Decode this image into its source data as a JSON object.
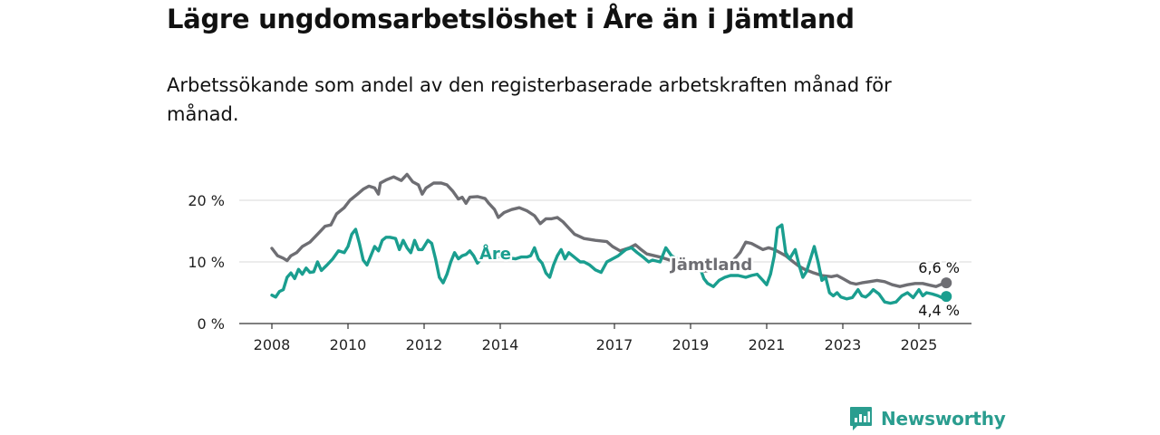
{
  "title": "Lägre ungdomsarbetslöshet i Åre än i Jämtland",
  "subtitle": "Arbetssökande som andel av den registerbaserade arbetskraften månad för månad.",
  "brand": {
    "name": "Newsworthy",
    "icon": "newsworthy-logo-icon"
  },
  "chart_data": {
    "type": "line",
    "title": "Lägre ungdomsarbetslöshet i Åre än i Jämtland",
    "subtitle": "Arbetssökande som andel av den registerbaserade arbetskraften månad för månad.",
    "xlabel": "",
    "ylabel": "",
    "xlim": [
      2007.7,
      2026.4
    ],
    "ylim": [
      0,
      22
    ],
    "grid": "horizontal",
    "legend": "inline labels",
    "yticks": [
      {
        "value": 0,
        "label": "0 %"
      },
      {
        "value": 10,
        "label": "10 %"
      },
      {
        "value": 20,
        "label": "20 %"
      }
    ],
    "xticks": [
      {
        "value": 2008,
        "label": "2008"
      },
      {
        "value": 2010,
        "label": "2010"
      },
      {
        "value": 2012,
        "label": "2012"
      },
      {
        "value": 2014,
        "label": "2014"
      },
      {
        "value": 2017,
        "label": "2017"
      },
      {
        "value": 2019,
        "label": "2019"
      },
      {
        "value": 2021,
        "label": "2021"
      },
      {
        "value": 2023,
        "label": "2023"
      },
      {
        "value": 2025,
        "label": "2025"
      }
    ],
    "series": [
      {
        "name": "Jämtland",
        "color": "#6e6e73",
        "end_label": "6,6 %",
        "end_value": 6.6,
        "points": [
          [
            2008.0,
            12.2
          ],
          [
            2008.15,
            11.0
          ],
          [
            2008.3,
            10.6
          ],
          [
            2008.4,
            10.2
          ],
          [
            2008.5,
            11.0
          ],
          [
            2008.65,
            11.5
          ],
          [
            2008.8,
            12.5
          ],
          [
            2009.0,
            13.2
          ],
          [
            2009.2,
            14.5
          ],
          [
            2009.4,
            15.8
          ],
          [
            2009.55,
            16.0
          ],
          [
            2009.7,
            17.8
          ],
          [
            2009.9,
            18.8
          ],
          [
            2010.05,
            20.0
          ],
          [
            2010.25,
            21.0
          ],
          [
            2010.4,
            21.8
          ],
          [
            2010.55,
            22.3
          ],
          [
            2010.7,
            22.0
          ],
          [
            2010.8,
            21.0
          ],
          [
            2010.85,
            22.8
          ],
          [
            2011.0,
            23.3
          ],
          [
            2011.2,
            23.8
          ],
          [
            2011.4,
            23.2
          ],
          [
            2011.55,
            24.2
          ],
          [
            2011.7,
            23.0
          ],
          [
            2011.85,
            22.5
          ],
          [
            2011.95,
            21.0
          ],
          [
            2012.05,
            22.0
          ],
          [
            2012.25,
            22.8
          ],
          [
            2012.45,
            22.8
          ],
          [
            2012.6,
            22.5
          ],
          [
            2012.75,
            21.5
          ],
          [
            2012.9,
            20.2
          ],
          [
            2013.0,
            20.5
          ],
          [
            2013.1,
            19.5
          ],
          [
            2013.2,
            20.5
          ],
          [
            2013.4,
            20.6
          ],
          [
            2013.6,
            20.3
          ],
          [
            2013.7,
            19.5
          ],
          [
            2013.85,
            18.5
          ],
          [
            2013.95,
            17.2
          ],
          [
            2014.1,
            18.0
          ],
          [
            2014.3,
            18.5
          ],
          [
            2014.5,
            18.8
          ],
          [
            2014.7,
            18.3
          ],
          [
            2014.9,
            17.5
          ],
          [
            2015.05,
            16.2
          ],
          [
            2015.2,
            17.0
          ],
          [
            2015.35,
            17.0
          ],
          [
            2015.5,
            17.2
          ],
          [
            2015.65,
            16.5
          ],
          [
            2015.8,
            15.5
          ],
          [
            2015.95,
            14.5
          ],
          [
            2016.2,
            13.8
          ],
          [
            2016.5,
            13.5
          ],
          [
            2016.8,
            13.3
          ],
          [
            2016.95,
            12.5
          ],
          [
            2017.15,
            11.8
          ],
          [
            2017.4,
            12.3
          ],
          [
            2017.55,
            12.8
          ],
          [
            2017.7,
            12.0
          ],
          [
            2017.85,
            11.3
          ],
          [
            2018.05,
            11.0
          ],
          [
            2018.25,
            10.7
          ],
          [
            2018.5,
            10.2
          ],
          [
            2018.75,
            9.7
          ],
          [
            2019.0,
            9.2
          ],
          [
            2019.2,
            8.8
          ],
          [
            2019.35,
            8.5
          ],
          [
            2019.5,
            8.6
          ],
          [
            2019.7,
            8.8
          ],
          [
            2019.9,
            9.2
          ],
          [
            2020.05,
            9.8
          ],
          [
            2020.2,
            10.8
          ],
          [
            2020.3,
            11.5
          ],
          [
            2020.45,
            13.2
          ],
          [
            2020.6,
            13.0
          ],
          [
            2020.75,
            12.5
          ],
          [
            2020.9,
            12.0
          ],
          [
            2021.05,
            12.3
          ],
          [
            2021.2,
            12.0
          ],
          [
            2021.35,
            11.5
          ],
          [
            2021.5,
            11.0
          ],
          [
            2021.7,
            10.0
          ],
          [
            2021.85,
            9.3
          ],
          [
            2022.0,
            8.8
          ],
          [
            2022.2,
            8.3
          ],
          [
            2022.45,
            7.8
          ],
          [
            2022.7,
            7.6
          ],
          [
            2022.85,
            7.8
          ],
          [
            2023.0,
            7.3
          ],
          [
            2023.2,
            6.6
          ],
          [
            2023.35,
            6.4
          ],
          [
            2023.5,
            6.6
          ],
          [
            2023.7,
            6.8
          ],
          [
            2023.9,
            7.0
          ],
          [
            2024.1,
            6.8
          ],
          [
            2024.3,
            6.3
          ],
          [
            2024.5,
            6.0
          ],
          [
            2024.7,
            6.3
          ],
          [
            2024.9,
            6.5
          ],
          [
            2025.1,
            6.5
          ],
          [
            2025.3,
            6.2
          ],
          [
            2025.45,
            6.0
          ],
          [
            2025.6,
            6.4
          ],
          [
            2025.72,
            6.6
          ]
        ]
      },
      {
        "name": "Åre",
        "color": "#1a9e8f",
        "end_label": "4,4 %",
        "end_value": 4.4,
        "points": [
          [
            2008.0,
            4.6
          ],
          [
            2008.1,
            4.3
          ],
          [
            2008.2,
            5.2
          ],
          [
            2008.3,
            5.5
          ],
          [
            2008.4,
            7.5
          ],
          [
            2008.5,
            8.2
          ],
          [
            2008.6,
            7.3
          ],
          [
            2008.7,
            8.8
          ],
          [
            2008.8,
            8.0
          ],
          [
            2008.9,
            9.0
          ],
          [
            2009.0,
            8.3
          ],
          [
            2009.1,
            8.4
          ],
          [
            2009.2,
            10.0
          ],
          [
            2009.3,
            8.6
          ],
          [
            2009.45,
            9.5
          ],
          [
            2009.6,
            10.5
          ],
          [
            2009.75,
            11.8
          ],
          [
            2009.9,
            11.5
          ],
          [
            2010.0,
            12.5
          ],
          [
            2010.1,
            14.5
          ],
          [
            2010.2,
            15.3
          ],
          [
            2010.3,
            13.0
          ],
          [
            2010.4,
            10.3
          ],
          [
            2010.5,
            9.5
          ],
          [
            2010.6,
            11.0
          ],
          [
            2010.7,
            12.5
          ],
          [
            2010.8,
            11.8
          ],
          [
            2010.9,
            13.5
          ],
          [
            2011.0,
            14.0
          ],
          [
            2011.1,
            14.0
          ],
          [
            2011.25,
            13.8
          ],
          [
            2011.35,
            12.0
          ],
          [
            2011.45,
            13.5
          ],
          [
            2011.55,
            12.3
          ],
          [
            2011.65,
            11.5
          ],
          [
            2011.75,
            13.5
          ],
          [
            2011.85,
            12.0
          ],
          [
            2011.95,
            12.0
          ],
          [
            2012.1,
            13.5
          ],
          [
            2012.2,
            13.0
          ],
          [
            2012.3,
            10.5
          ],
          [
            2012.4,
            7.5
          ],
          [
            2012.5,
            6.6
          ],
          [
            2012.6,
            8.0
          ],
          [
            2012.7,
            10.0
          ],
          [
            2012.8,
            11.5
          ],
          [
            2012.9,
            10.5
          ],
          [
            2013.0,
            11.0
          ],
          [
            2013.1,
            11.2
          ],
          [
            2013.2,
            11.8
          ],
          [
            2013.3,
            11.0
          ],
          [
            2013.4,
            9.8
          ],
          [
            2013.5,
            10.5
          ],
          [
            2013.6,
            11.5
          ],
          [
            2013.8,
            11.0
          ],
          [
            2014.4,
            10.5
          ],
          [
            2014.55,
            10.8
          ],
          [
            2014.7,
            10.8
          ],
          [
            2014.8,
            11.0
          ],
          [
            2014.9,
            12.3
          ],
          [
            2015.0,
            10.5
          ],
          [
            2015.1,
            9.8
          ],
          [
            2015.2,
            8.2
          ],
          [
            2015.3,
            7.5
          ],
          [
            2015.4,
            9.5
          ],
          [
            2015.5,
            11.0
          ],
          [
            2015.6,
            12.0
          ],
          [
            2015.7,
            10.5
          ],
          [
            2015.8,
            11.5
          ],
          [
            2015.9,
            11.0
          ],
          [
            2016.0,
            10.5
          ],
          [
            2016.1,
            10.0
          ],
          [
            2016.2,
            10.0
          ],
          [
            2016.35,
            9.5
          ],
          [
            2016.5,
            8.7
          ],
          [
            2016.65,
            8.3
          ],
          [
            2016.8,
            10.0
          ],
          [
            2016.95,
            10.5
          ],
          [
            2017.1,
            11.0
          ],
          [
            2017.3,
            12.0
          ],
          [
            2017.45,
            12.3
          ],
          [
            2017.6,
            11.5
          ],
          [
            2017.75,
            10.8
          ],
          [
            2017.9,
            10.0
          ],
          [
            2018.0,
            10.3
          ],
          [
            2018.2,
            10.0
          ],
          [
            2018.35,
            12.3
          ],
          [
            2018.5,
            11.0
          ],
          [
            2018.65,
            10.5
          ],
          [
            2018.8,
            9.5
          ],
          [
            2018.95,
            9.2
          ],
          [
            2019.1,
            9.5
          ],
          [
            2019.25,
            9.0
          ],
          [
            2019.35,
            7.3
          ],
          [
            2019.45,
            6.5
          ],
          [
            2019.6,
            6.0
          ],
          [
            2019.75,
            7.0
          ],
          [
            2019.9,
            7.5
          ],
          [
            2020.05,
            7.8
          ],
          [
            2020.25,
            7.8
          ],
          [
            2020.45,
            7.5
          ],
          [
            2020.6,
            7.8
          ],
          [
            2020.75,
            8.0
          ],
          [
            2020.9,
            7.0
          ],
          [
            2021.0,
            6.3
          ],
          [
            2021.1,
            8.0
          ],
          [
            2021.2,
            11.0
          ],
          [
            2021.28,
            15.5
          ],
          [
            2021.4,
            16.0
          ],
          [
            2021.5,
            11.5
          ],
          [
            2021.6,
            10.5
          ],
          [
            2021.75,
            12.0
          ],
          [
            2021.85,
            9.5
          ],
          [
            2021.95,
            7.5
          ],
          [
            2022.05,
            8.5
          ],
          [
            2022.15,
            10.5
          ],
          [
            2022.25,
            12.5
          ],
          [
            2022.35,
            10.0
          ],
          [
            2022.45,
            7.0
          ],
          [
            2022.55,
            7.5
          ],
          [
            2022.65,
            5.0
          ],
          [
            2022.75,
            4.5
          ],
          [
            2022.85,
            5.0
          ],
          [
            2022.95,
            4.3
          ],
          [
            2023.1,
            4.0
          ],
          [
            2023.25,
            4.2
          ],
          [
            2023.4,
            5.5
          ],
          [
            2023.5,
            4.5
          ],
          [
            2023.6,
            4.3
          ],
          [
            2023.7,
            4.8
          ],
          [
            2023.8,
            5.5
          ],
          [
            2023.95,
            4.8
          ],
          [
            2024.1,
            3.5
          ],
          [
            2024.25,
            3.3
          ],
          [
            2024.4,
            3.5
          ],
          [
            2024.55,
            4.5
          ],
          [
            2024.7,
            5.0
          ],
          [
            2024.85,
            4.2
          ],
          [
            2025.0,
            5.5
          ],
          [
            2025.1,
            4.5
          ],
          [
            2025.2,
            5.0
          ],
          [
            2025.35,
            4.8
          ],
          [
            2025.5,
            4.5
          ],
          [
            2025.6,
            4.2
          ],
          [
            2025.72,
            4.4
          ]
        ]
      }
    ]
  }
}
